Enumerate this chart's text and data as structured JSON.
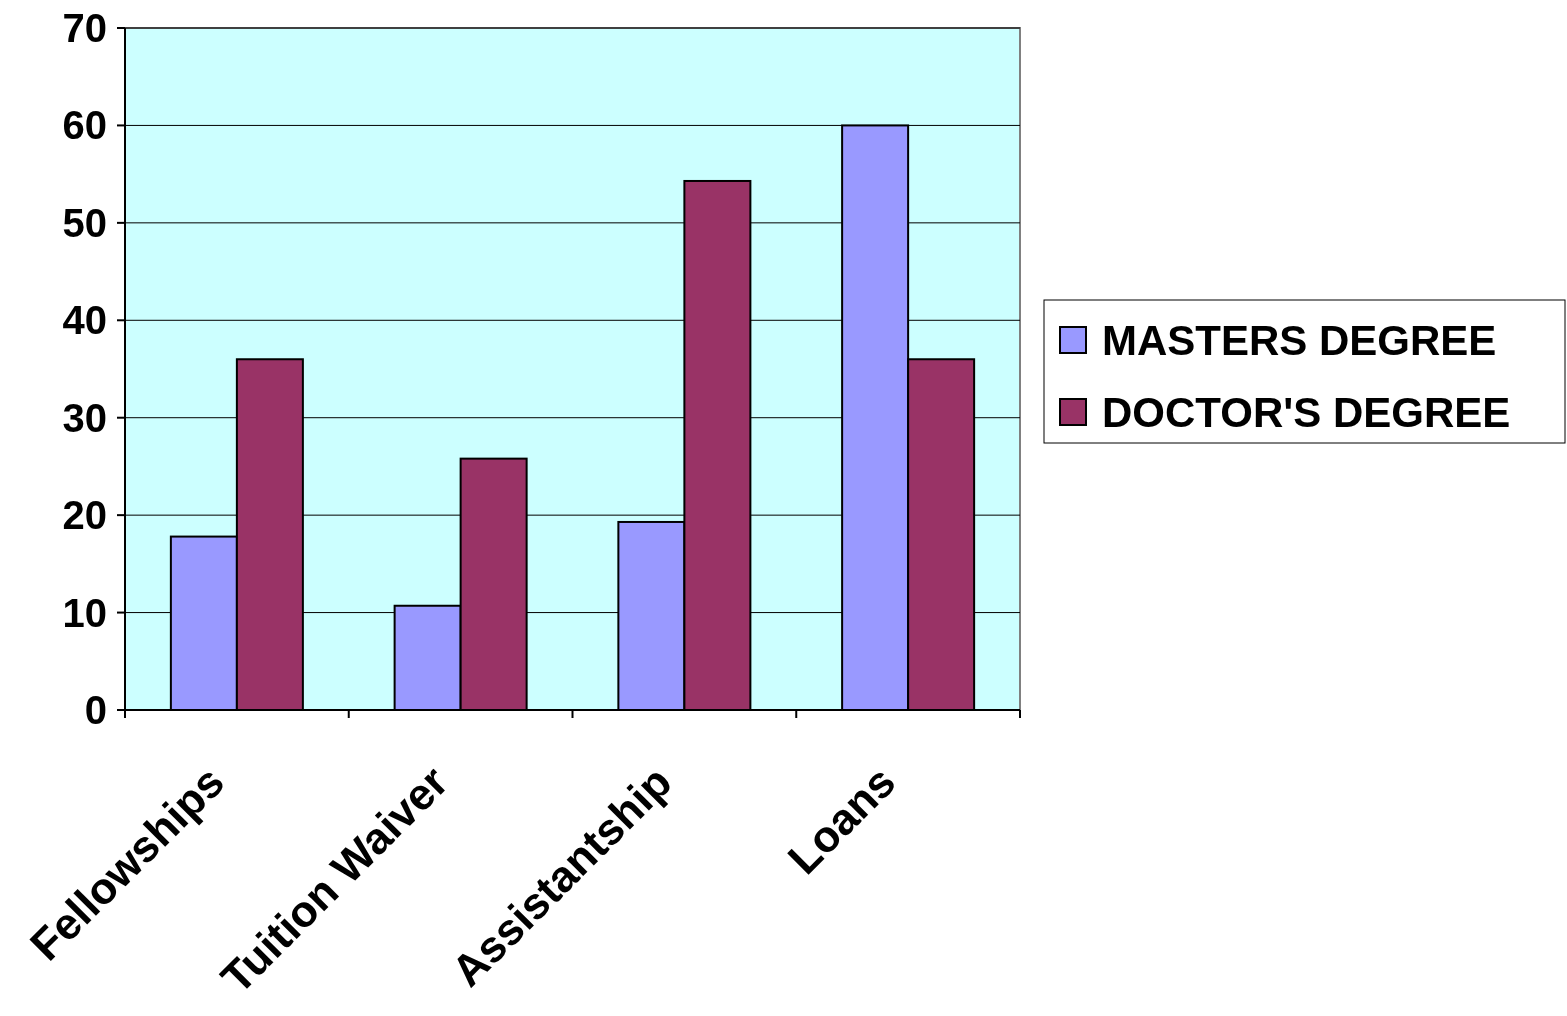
{
  "chart_data": {
    "type": "bar",
    "categories": [
      "Fellowships",
      "Tuition Waiver",
      "Assistantship",
      "Loans"
    ],
    "series": [
      {
        "name": "MASTERS DEGREE",
        "color": "#9999ff",
        "values": [
          17.8,
          10.7,
          19.3,
          60
        ]
      },
      {
        "name": "DOCTOR'S DEGREE",
        "color": "#993366",
        "values": [
          36,
          25.8,
          54.3,
          36
        ]
      }
    ],
    "ylim": [
      0,
      70
    ],
    "yticks": [
      0,
      10,
      20,
      30,
      40,
      50,
      60,
      70
    ],
    "grid": "y",
    "legend": "right"
  }
}
